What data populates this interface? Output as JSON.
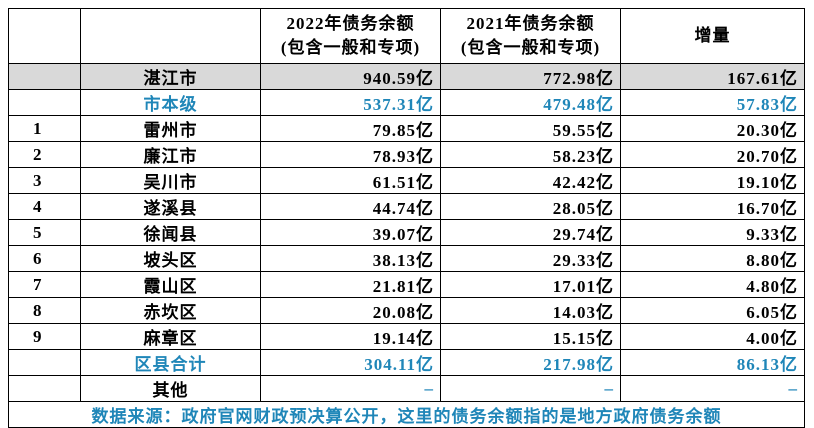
{
  "table": {
    "header": [
      [
        "2022年债务余额",
        "(包含一般和专项)"
      ],
      [
        "2021年债务余额",
        "(包含一般和专项)"
      ],
      [
        "增量"
      ]
    ],
    "rows": [
      {
        "name": "湛江市",
        "values": [
          "940.59亿",
          "772.98亿",
          "167.61亿"
        ],
        "background": "#d9d9d9"
      },
      {
        "name": "市本级",
        "values": [
          "537.31亿",
          "479.48亿",
          "57.83亿"
        ],
        "color": "#1f86b8"
      },
      {
        "index": 1,
        "name": "雷州市",
        "values": [
          "79.85亿",
          "59.55亿",
          "20.30亿"
        ]
      },
      {
        "index": 2,
        "name": "廉江市",
        "values": [
          "78.93亿",
          "58.23亿",
          "20.70亿"
        ]
      },
      {
        "index": 3,
        "name": "吴川市",
        "values": [
          "61.51亿",
          "42.42亿",
          "19.10亿"
        ]
      },
      {
        "index": 4,
        "name": "遂溪县",
        "values": [
          "44.74亿",
          "28.05亿",
          "16.70亿"
        ]
      },
      {
        "index": 5,
        "name": "徐闻县",
        "values": [
          "39.07亿",
          "29.74亿",
          "9.33亿"
        ]
      },
      {
        "index": 6,
        "name": "坡头区",
        "values": [
          "38.13亿",
          "29.33亿",
          "8.80亿"
        ]
      },
      {
        "index": 7,
        "name": "霞山区",
        "values": [
          "21.81亿",
          "17.01亿",
          "4.80亿"
        ]
      },
      {
        "index": 8,
        "name": "赤坎区",
        "values": [
          "20.08亿",
          "14.03亿",
          "6.05亿"
        ]
      },
      {
        "index": 9,
        "name": "麻章区",
        "values": [
          "19.14亿",
          "15.15亿",
          "4.00亿"
        ]
      },
      {
        "name": "区县合计",
        "values": [
          "304.11亿",
          "217.98亿",
          "86.13亿"
        ],
        "color": "#1f86b8"
      },
      {
        "name": "其他",
        "values": [
          "–",
          "–",
          "–"
        ],
        "value_color": "#1f86b8"
      }
    ],
    "source": "数据来源：政府官网财政预决算公开，这里的债务余额指的是地方政府债务余额",
    "source_color": "#1f86b8"
  }
}
